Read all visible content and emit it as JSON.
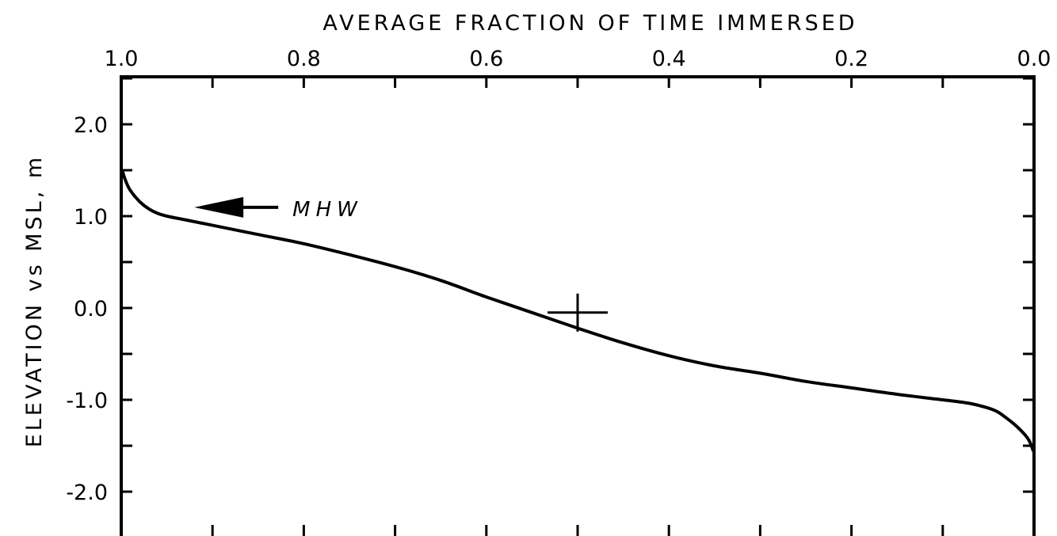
{
  "chart_data": {
    "type": "line",
    "title": "",
    "xlabel": "AVERAGE FRACTION OF TIME IMMERSED",
    "ylabel": "ELEVATION vs MSL, m",
    "xlim": [
      1.0,
      0.0
    ],
    "ylim": [
      -2.5,
      2.5
    ],
    "x_axis_position": "top",
    "x_ticks": [
      1.0,
      0.8,
      0.6,
      0.4,
      0.2,
      0.0
    ],
    "x_tick_labels": [
      "1.0",
      "0.8",
      "0.6",
      "0.4",
      "0.2",
      "0.0"
    ],
    "y_ticks": [
      2.0,
      1.0,
      0.0,
      -1.0,
      -2.0
    ],
    "y_tick_labels": [
      "2.0",
      "1.0",
      "0.0",
      "-1.0",
      "-2.0"
    ],
    "grid": false,
    "legend": "none",
    "series": [
      {
        "x": [
          0.999,
          0.995,
          0.99,
          0.98,
          0.97,
          0.96,
          0.95,
          0.93,
          0.9,
          0.85,
          0.8,
          0.75,
          0.7,
          0.65,
          0.6,
          0.55,
          0.5,
          0.45,
          0.4,
          0.35,
          0.3,
          0.25,
          0.2,
          0.15,
          0.1,
          0.07,
          0.05,
          0.04,
          0.03,
          0.02,
          0.01,
          0.005,
          0.001
        ],
        "y": [
          1.5,
          1.38,
          1.28,
          1.16,
          1.08,
          1.03,
          1.0,
          0.96,
          0.9,
          0.8,
          0.7,
          0.58,
          0.45,
          0.3,
          0.12,
          -0.05,
          -0.22,
          -0.38,
          -0.52,
          -0.63,
          -0.71,
          -0.8,
          -0.87,
          -0.94,
          -1.0,
          -1.04,
          -1.09,
          -1.13,
          -1.2,
          -1.28,
          -1.38,
          -1.45,
          -1.55
        ]
      }
    ],
    "annotations": [
      {
        "text": "MHW",
        "x": 0.92,
        "y": 1.07,
        "arrow": true
      },
      {
        "marker": "cross",
        "x": 0.5,
        "y": -0.05
      }
    ]
  }
}
